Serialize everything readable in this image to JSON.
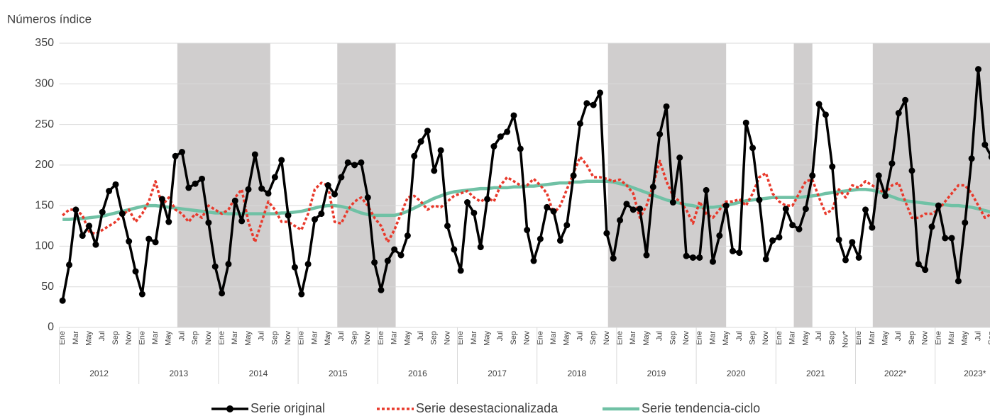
{
  "chart_data": {
    "type": "line",
    "y_label": "Números índice",
    "ylim": [
      0,
      350
    ],
    "yticks": [
      0,
      50,
      100,
      150,
      200,
      250,
      300,
      350
    ],
    "grid": true,
    "categories": [
      "Ene",
      null,
      "Mar",
      null,
      "May",
      null,
      "Jul",
      null,
      "Sep",
      null,
      "Nov",
      null,
      "Ene",
      null,
      "Mar",
      null,
      "May",
      null,
      "Jul",
      null,
      "Sep",
      null,
      "Nov",
      null,
      "Ene",
      null,
      "Mar",
      null,
      "May",
      null,
      "Jul",
      null,
      "Sep",
      null,
      "Nov",
      null,
      "Ene",
      null,
      "Mar",
      null,
      "May",
      null,
      "Jul",
      null,
      "Sep",
      null,
      "Nov",
      null,
      "Ene",
      null,
      "Mar",
      null,
      "May",
      null,
      "Jul",
      null,
      "Sep",
      null,
      "Nov",
      null,
      "Ene",
      null,
      "Mar",
      null,
      "May",
      null,
      "Jul",
      null,
      "Sep",
      null,
      "Nov",
      null,
      "Ene",
      null,
      "Mar",
      null,
      "May",
      null,
      "Jul",
      null,
      "Sep",
      null,
      "Nov",
      null,
      "Ene",
      null,
      "Mar",
      null,
      "May",
      null,
      "Jul",
      null,
      "Sep",
      null,
      "Nov",
      null,
      "Ene",
      null,
      "Mar",
      null,
      "May",
      null,
      "Jul",
      null,
      "Sep",
      null,
      "Nov",
      null,
      "Ene",
      null,
      "Mar",
      null,
      "May",
      null,
      "Jul",
      null,
      "Sep",
      null,
      "Nov*",
      null,
      "Ene",
      null,
      "Mar",
      null,
      "May",
      null,
      "Jul",
      null,
      "Sep",
      null,
      "Nov",
      null,
      "Ene",
      null,
      "Mar",
      null,
      "May",
      null,
      "Jul",
      null,
      "Sep"
    ],
    "year_groups": [
      "2012",
      "2013",
      "2014",
      "2015",
      "2016",
      "2017",
      "2018",
      "2019",
      "2020",
      "2021",
      "2022*",
      "2023*"
    ],
    "shaded_periods": [
      [
        17.3,
        31.3
      ],
      [
        41.4,
        50.2
      ],
      [
        82.2,
        100
      ],
      [
        110.2,
        113
      ],
      [
        122.1,
        141
      ]
    ],
    "shade_color": "#d0cece",
    "series": [
      {
        "name": "Serie original",
        "color": "#000000",
        "style": "solid-markers",
        "values": [
          33,
          77,
          145,
          113,
          125,
          102,
          142,
          168,
          176,
          140,
          106,
          69,
          41,
          109,
          105,
          158,
          130,
          211,
          216,
          172,
          177,
          183,
          129,
          75,
          42,
          78,
          156,
          131,
          170,
          213,
          171,
          165,
          185,
          206,
          138,
          74,
          41,
          78,
          133,
          140,
          175,
          164,
          185,
          203,
          200,
          203,
          160,
          80,
          46,
          82,
          96,
          89,
          113,
          211,
          229,
          242,
          193,
          218,
          125,
          96,
          70,
          154,
          141,
          99,
          158,
          223,
          235,
          241,
          261,
          220,
          120,
          82,
          109,
          148,
          143,
          107,
          126,
          187,
          251,
          276,
          274,
          289,
          116,
          85,
          132,
          152,
          145,
          146,
          89,
          173,
          238,
          272,
          154,
          209,
          88,
          86,
          86,
          169,
          81,
          113,
          150,
          94,
          92,
          252,
          221,
          157,
          84,
          107,
          111,
          146,
          126,
          121,
          146,
          187,
          275,
          262,
          198,
          108,
          83,
          105,
          86,
          145,
          123,
          187,
          162,
          202,
          264,
          280,
          193,
          78,
          71,
          124,
          150,
          110,
          110,
          57,
          129,
          208,
          318,
          225,
          210
        ]
      },
      {
        "name": "Serie desestacionalizada",
        "color": "#e8392b",
        "style": "dashed",
        "values": [
          138,
          145,
          145,
          138,
          118,
          115,
          120,
          125,
          130,
          138,
          145,
          130,
          140,
          155,
          180,
          150,
          160,
          145,
          140,
          130,
          140,
          135,
          150,
          145,
          140,
          145,
          160,
          170,
          130,
          105,
          130,
          155,
          145,
          130,
          130,
          125,
          120,
          140,
          170,
          178,
          175,
          130,
          128,
          145,
          155,
          160,
          150,
          135,
          125,
          105,
          120,
          140,
          160,
          162,
          155,
          145,
          150,
          148,
          155,
          162,
          165,
          168,
          160,
          155,
          160,
          155,
          175,
          185,
          180,
          175,
          175,
          183,
          175,
          165,
          140,
          150,
          170,
          190,
          210,
          200,
          185,
          185,
          183,
          180,
          182,
          175,
          165,
          135,
          150,
          175,
          205,
          180,
          162,
          155,
          145,
          128,
          155,
          140,
          135,
          145,
          155,
          155,
          158,
          150,
          165,
          185,
          190,
          165,
          155,
          150,
          150,
          165,
          180,
          182,
          160,
          140,
          145,
          170,
          160,
          175,
          172,
          180,
          175,
          170,
          165,
          175,
          178,
          155,
          135,
          135,
          140,
          140,
          145,
          155,
          165,
          175,
          175,
          165,
          150,
          135,
          140
        ]
      },
      {
        "name": "Serie tendencia-ciclo",
        "color": "#70c1a5",
        "style": "thick",
        "values": [
          133,
          133,
          134,
          134,
          135,
          136,
          137,
          139,
          141,
          143,
          145,
          147,
          149,
          150,
          150,
          149,
          148,
          147,
          146,
          145,
          144,
          143,
          142,
          141,
          141,
          140,
          140,
          140,
          140,
          140,
          140,
          140,
          140,
          141,
          141,
          142,
          143,
          145,
          147,
          149,
          150,
          150,
          149,
          147,
          144,
          141,
          139,
          138,
          138,
          138,
          138,
          140,
          143,
          147,
          151,
          155,
          159,
          162,
          165,
          167,
          168,
          169,
          170,
          171,
          171,
          172,
          172,
          172,
          173,
          173,
          174,
          174,
          175,
          176,
          177,
          178,
          178,
          179,
          179,
          180,
          180,
          180,
          180,
          179,
          177,
          175,
          172,
          169,
          166,
          163,
          160,
          157,
          155,
          153,
          151,
          150,
          148,
          148,
          148,
          149,
          150,
          152,
          154,
          156,
          157,
          158,
          159,
          160,
          160,
          160,
          160,
          160,
          161,
          162,
          163,
          165,
          166,
          167,
          168,
          169,
          170,
          170,
          169,
          167,
          164,
          161,
          158,
          156,
          155,
          154,
          153,
          152,
          151,
          151,
          150,
          150,
          149,
          148,
          146,
          144,
          142
        ]
      }
    ]
  }
}
